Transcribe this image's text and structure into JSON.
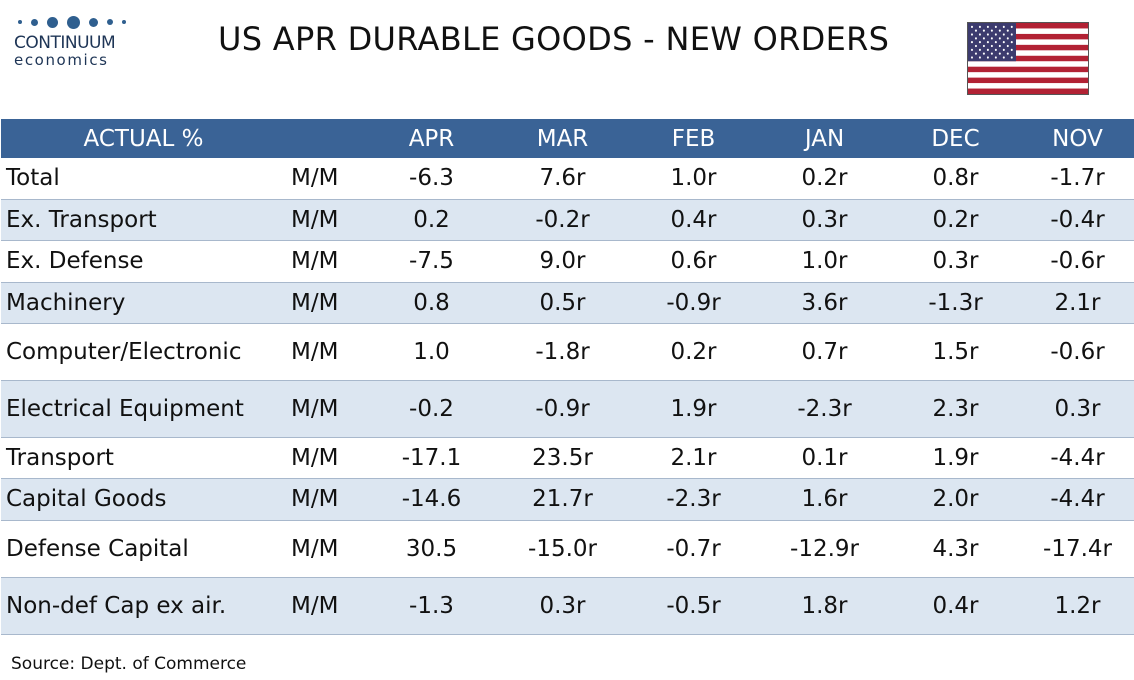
{
  "logo": {
    "brand": "CONTINUUM",
    "sub": "economics"
  },
  "title": "US APR DURABLE GOODS - NEW ORDERS",
  "flag_icon": "us-flag-icon",
  "colors": {
    "header": "#3a6396",
    "alt_row": "#dce6f1",
    "logo": "#2f5f8f"
  },
  "table": {
    "header": {
      "label": "ACTUAL %",
      "unit": "",
      "columns": [
        "APR",
        "MAR",
        "FEB",
        "JAN",
        "DEC",
        "NOV"
      ]
    },
    "rows": [
      {
        "name": "Total",
        "unit": "M/M",
        "values": [
          "-6.3",
          "7.6r",
          "1.0r",
          "0.2r",
          "0.8r",
          "-1.7r"
        ]
      },
      {
        "name": "Ex. Transport",
        "unit": "M/M",
        "values": [
          "0.2",
          "-0.2r",
          "0.4r",
          "0.3r",
          "0.2r",
          "-0.4r"
        ]
      },
      {
        "name": "Ex. Defense",
        "unit": "M/M",
        "values": [
          "-7.5",
          "9.0r",
          "0.6r",
          "1.0r",
          "0.3r",
          "-0.6r"
        ]
      },
      {
        "name": "Machinery",
        "unit": "M/M",
        "values": [
          "0.8",
          "0.5r",
          "-0.9r",
          "3.6r",
          "-1.3r",
          "2.1r"
        ]
      },
      {
        "name": "Computer/Electronic",
        "unit": "M/M",
        "values": [
          "1.0",
          "-1.8r",
          "0.2r",
          "0.7r",
          "1.5r",
          "-0.6r"
        ]
      },
      {
        "name": "Electrical Equipment",
        "unit": "M/M",
        "values": [
          "-0.2",
          "-0.9r",
          "1.9r",
          "-2.3r",
          "2.3r",
          "0.3r"
        ]
      },
      {
        "name": "Transport",
        "unit": "M/M",
        "values": [
          "-17.1",
          "23.5r",
          "2.1r",
          "0.1r",
          "1.9r",
          "-4.4r"
        ]
      },
      {
        "name": "Capital Goods",
        "unit": "M/M",
        "values": [
          "-14.6",
          "21.7r",
          "-2.3r",
          "1.6r",
          "2.0r",
          "-4.4r"
        ]
      },
      {
        "name": "Defense Capital",
        "unit": "M/M",
        "values": [
          "30.5",
          "-15.0r",
          "-0.7r",
          "-12.9r",
          "4.3r",
          "-17.4r"
        ]
      },
      {
        "name": "Non-def Cap ex air.",
        "unit": "M/M",
        "values": [
          "-1.3",
          "0.3r",
          "-0.5r",
          "1.8r",
          "0.4r",
          "1.2r"
        ]
      }
    ]
  },
  "source": "Source: Dept. of Commerce"
}
